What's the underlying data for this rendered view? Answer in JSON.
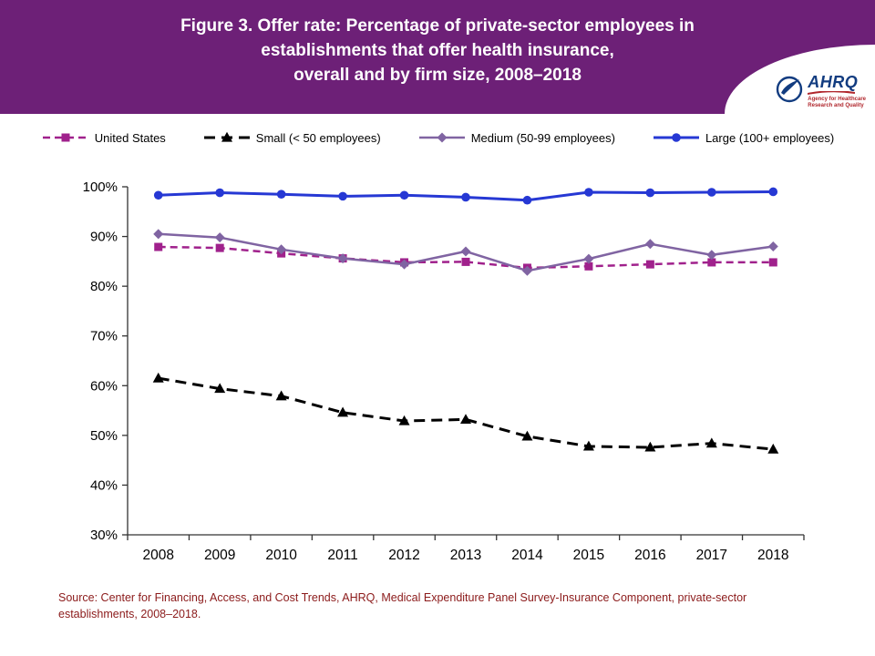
{
  "header": {
    "title_lines": [
      "Figure 3. Offer rate: Percentage of private-sector employees in",
      "establishments that offer health insurance,",
      "overall and by firm size, 2008–2018"
    ],
    "logo": {
      "acronym": "AHRQ",
      "tagline_lines": [
        "Agency for Healthcare",
        "Research and Quality"
      ]
    }
  },
  "colors": {
    "header_bg": "#6d2077",
    "source_text": "#8b1a1a",
    "united_states": "#a0218c",
    "small": "#000000",
    "medium": "#8064a2",
    "large": "#2638d4"
  },
  "chart_data": {
    "type": "line",
    "title": "Figure 3. Offer rate: Percentage of private-sector employees in establishments that offer health insurance, overall and by firm size, 2008–2018",
    "x": [
      2008,
      2009,
      2010,
      2011,
      2012,
      2013,
      2014,
      2015,
      2016,
      2017,
      2018
    ],
    "ylim": [
      30,
      100
    ],
    "yticks": [
      30,
      40,
      50,
      60,
      70,
      80,
      90,
      100
    ],
    "ytick_suffix": "%",
    "grid": false,
    "legend_position": "top",
    "series": [
      {
        "name": "United States",
        "color": "#a0218c",
        "dash": "8 5",
        "marker": "square",
        "width": 2.5,
        "values": [
          87.9,
          87.7,
          86.6,
          85.6,
          84.8,
          84.9,
          83.7,
          84.0,
          84.4,
          84.8,
          84.8
        ]
      },
      {
        "name": "Small (< 50 employees)",
        "color": "#000000",
        "dash": "12 7",
        "marker": "triangle",
        "width": 3,
        "values": [
          61.5,
          59.4,
          57.9,
          54.6,
          52.9,
          53.2,
          49.8,
          47.8,
          47.6,
          48.4,
          47.2
        ]
      },
      {
        "name": "Medium (50-99 employees)",
        "color": "#8064a2",
        "dash": "",
        "marker": "diamond",
        "width": 2.5,
        "values": [
          90.5,
          89.8,
          87.4,
          85.6,
          84.4,
          87.0,
          83.1,
          85.5,
          88.5,
          86.3,
          88.0
        ]
      },
      {
        "name": "Large (100+ employees)",
        "color": "#2638d4",
        "dash": "",
        "marker": "circle",
        "width": 3,
        "values": [
          98.3,
          98.8,
          98.5,
          98.1,
          98.3,
          97.9,
          97.3,
          98.9,
          98.8,
          98.9,
          99.0
        ]
      }
    ]
  },
  "source": {
    "text": "Source: Center for Financing, Access, and Cost Trends, AHRQ, Medical Expenditure Panel Survey-Insurance Component, private-sector establishments, 2008–2018."
  }
}
